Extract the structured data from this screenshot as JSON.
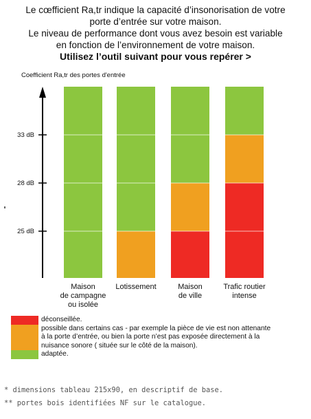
{
  "intro": {
    "line1": "Le cœfficient Ra,tr indique la capacité d’insonorisation de votre",
    "line2": "porte d’entrée sur votre maison.",
    "line3": "Le niveau de performance dont vous avez besoin est variable",
    "line4": "en fonction de l’environnement de votre maison.",
    "line5": "Utilisez l’outil suivant pour vous repérer >"
  },
  "chart_data": {
    "type": "bar",
    "ylabel": "Coefficient Ra,tr des portes d'entrée",
    "y_ticks": [
      "33 dB",
      "28 dB",
      "25 dB"
    ],
    "grid": false,
    "legend_position": "bottom-left",
    "categories": [
      [
        "Maison",
        "de campagne",
        "ou isolée"
      ],
      [
        "Lotissement"
      ],
      [
        "Maison",
        "de ville"
      ],
      [
        "Trafic routier",
        "intense"
      ]
    ],
    "bands_top_to_bottom": [
      "above 33 dB",
      "28–33 dB",
      "25–28 dB",
      "below 25 dB"
    ],
    "cells": [
      [
        "adaptée",
        "adaptée",
        "adaptée",
        "adaptée"
      ],
      [
        "adaptée",
        "adaptée",
        "adaptée",
        "possible"
      ],
      [
        "adaptée",
        "adaptée",
        "possible",
        "déconseillée"
      ],
      [
        "adaptée",
        "possible",
        "déconseillée",
        "déconseillée"
      ]
    ],
    "colors": {
      "adaptée": "#8CC63F",
      "possible": "#F0A020",
      "déconseillée": "#EE2A24"
    }
  },
  "legend": [
    {
      "key": "déconseillée",
      "label": "déconseillée."
    },
    {
      "key": "possible",
      "lines": [
        "possible dans certains cas - par exemple la pièce de vie est non attenante",
        "à la porte d’entrée, ou bien la porte n’est pas exposée directement à la",
        "nuisance sonore ( située sur le côté de la maison)."
      ]
    },
    {
      "key": "adaptée",
      "label": "adaptée."
    }
  ],
  "footnotes": {
    "note1": "* dimensions tableau 215x90, en descriptif de base.",
    "note2": "** portes bois identifiées NF sur le catalogue."
  }
}
